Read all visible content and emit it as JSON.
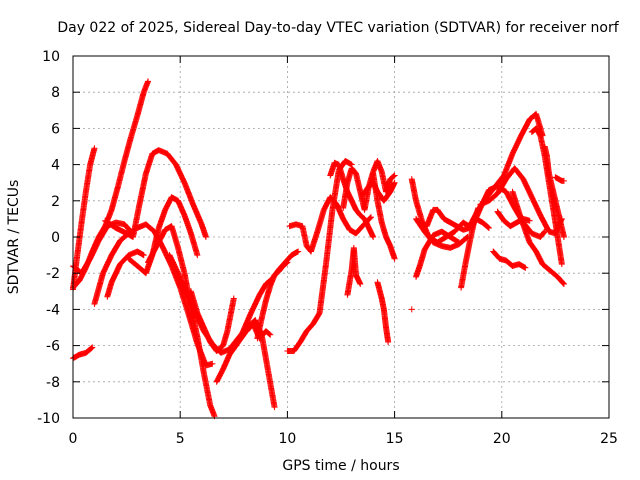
{
  "chart_data": {
    "type": "scatter",
    "title": "Day 022 of 2025, Sidereal Day-to-day VTEC variation (SDTVAR) for receiver norf",
    "xlabel": "GPS time / hours",
    "ylabel": "SDTVAR / TECUs",
    "xlim": [
      0,
      25
    ],
    "ylim": [
      -10,
      10
    ],
    "xticks": [
      0,
      5,
      10,
      15,
      20,
      25
    ],
    "yticks": [
      -10,
      -8,
      -6,
      -4,
      -2,
      0,
      2,
      4,
      6,
      8,
      10
    ],
    "grid": true,
    "marker": "+",
    "color": "#ff0000",
    "series": [
      {
        "x": [
          0.0,
          0.3,
          0.6,
          0.9
        ],
        "y": [
          -6.7,
          -6.5,
          -6.4,
          -6.1
        ]
      },
      {
        "x": [
          0.0,
          0.2,
          0.4,
          0.6,
          0.8,
          1.0
        ],
        "y": [
          -2.9,
          -1.0,
          0.8,
          2.5,
          4.0,
          4.9
        ]
      },
      {
        "x": [
          0.0,
          0.3,
          0.6,
          0.9,
          1.2,
          1.5,
          1.8,
          2.1,
          2.4,
          2.7,
          3.0,
          3.3,
          3.5
        ],
        "y": [
          -2.8,
          -2.4,
          -1.7,
          -0.8,
          0.0,
          0.6,
          1.5,
          2.8,
          4.2,
          5.5,
          6.7,
          8.0,
          8.6
        ]
      },
      {
        "x": [
          0.0,
          0.4,
          0.8,
          1.2,
          1.6,
          2.0,
          2.4,
          2.7
        ],
        "y": [
          -1.6,
          -2.0,
          -1.2,
          -0.2,
          0.6,
          0.8,
          0.7,
          0.3
        ]
      },
      {
        "x": [
          1.0,
          1.4,
          1.8,
          2.2,
          2.6,
          3.0,
          3.4,
          3.8,
          4.2,
          4.6,
          5.0,
          5.4,
          5.8,
          6.2,
          6.5
        ],
        "y": [
          -3.7,
          -2.0,
          -1.0,
          -0.2,
          0.2,
          0.5,
          0.7,
          0.3,
          -0.6,
          -1.6,
          -2.8,
          -4.3,
          -5.9,
          -7.1,
          -7.0
        ]
      },
      {
        "x": [
          1.5,
          2.0,
          2.5,
          2.8,
          3.1,
          3.4,
          3.7,
          4.0,
          4.4,
          4.8,
          5.2,
          5.6,
          6.0,
          6.2
        ],
        "y": [
          0.9,
          0.5,
          0.2,
          0.0,
          1.8,
          3.5,
          4.6,
          4.8,
          4.6,
          4.0,
          3.0,
          1.8,
          0.7,
          0.0
        ]
      },
      {
        "x": [
          1.6,
          1.8,
          2.0,
          2.2,
          2.6,
          3.0,
          3.3
        ],
        "y": [
          -3.3,
          -2.5,
          -2.0,
          -1.5,
          -1.0,
          -0.8,
          -1.0
        ]
      },
      {
        "x": [
          2.6,
          3.0,
          3.4,
          3.7,
          4.0,
          4.3,
          4.6,
          4.9,
          5.2,
          5.5,
          5.8
        ],
        "y": [
          -1.2,
          -1.6,
          -2.0,
          -1.0,
          0.5,
          1.5,
          2.2,
          2.0,
          1.2,
          0.2,
          -1.0
        ]
      },
      {
        "x": [
          3.5,
          3.9,
          4.3,
          4.6,
          4.9,
          5.2,
          5.5,
          5.8,
          6.1,
          6.4,
          6.6
        ],
        "y": [
          -1.4,
          -0.5,
          0.4,
          0.6,
          -0.6,
          -2.0,
          -3.9,
          -5.5,
          -7.5,
          -9.3,
          -9.9
        ]
      },
      {
        "x": [
          4.5,
          4.9,
          5.3,
          5.7,
          6.1,
          6.5,
          6.9,
          7.3,
          7.7,
          8.1,
          8.5
        ],
        "y": [
          -1.0,
          -2.0,
          -3.2,
          -4.2,
          -5.2,
          -5.9,
          -6.4,
          -6.2,
          -5.6,
          -5.0,
          -4.6
        ]
      },
      {
        "x": [
          5.5,
          5.8,
          6.1,
          6.4,
          6.7,
          7.0,
          7.2,
          7.5
        ],
        "y": [
          -3.0,
          -4.2,
          -5.0,
          -5.8,
          -6.3,
          -6.0,
          -5.2,
          -3.4
        ]
      },
      {
        "x": [
          6.7,
          7.0,
          7.3,
          7.6,
          7.9,
          8.2,
          8.5,
          8.8,
          9.1,
          9.4
        ],
        "y": [
          -8.0,
          -7.3,
          -6.5,
          -6.0,
          -5.5,
          -5.0,
          -4.6,
          -5.4,
          -7.4,
          -9.4
        ]
      },
      {
        "x": [
          7.9,
          8.3,
          8.7,
          9.0,
          9.3,
          9.6,
          9.9,
          10.2,
          10.5
        ],
        "y": [
          -5.3,
          -4.2,
          -3.2,
          -2.6,
          -2.3,
          -1.8,
          -1.4,
          -1.0,
          -0.8
        ]
      },
      {
        "x": [
          8.1,
          8.4,
          8.7,
          9.0,
          9.2
        ],
        "y": [
          -5.2,
          -4.8,
          -5.6,
          -5.2,
          -5.4
        ]
      },
      {
        "x": [
          8.6,
          8.8,
          9.0,
          9.2,
          9.4,
          9.6,
          9.8,
          10.0
        ],
        "y": [
          -5.6,
          -4.5,
          -3.5,
          -2.7,
          -2.1,
          -1.9,
          -1.6,
          -1.4
        ]
      },
      {
        "x": [
          10.0,
          10.3,
          10.6,
          10.9,
          11.2,
          11.5,
          11.8,
          12.1,
          12.4,
          12.7,
          13.0
        ],
        "y": [
          -6.3,
          -6.3,
          -5.8,
          -5.2,
          -4.8,
          -4.2,
          -1.5,
          1.5,
          3.7,
          4.2,
          4.0
        ]
      },
      {
        "x": [
          10.1,
          10.4,
          10.7,
          10.9,
          11.1,
          11.4,
          11.7,
          12.0,
          12.3,
          12.6,
          12.9,
          13.2,
          13.5,
          13.9
        ],
        "y": [
          0.6,
          0.7,
          0.6,
          -0.5,
          -0.8,
          0.3,
          1.5,
          2.2,
          1.8,
          1.0,
          0.4,
          0.2,
          0.6,
          1.1
        ]
      },
      {
        "x": [
          12.0,
          12.2,
          12.4,
          12.6,
          12.8,
          13.0,
          13.2,
          13.4,
          13.6,
          13.8,
          14.0
        ],
        "y": [
          3.4,
          4.1,
          4.0,
          3.2,
          2.5,
          2.0,
          1.5,
          1.2,
          1.0,
          0.5,
          0.0
        ]
      },
      {
        "x": [
          12.6,
          12.8,
          13.0,
          13.2,
          13.4,
          13.6,
          13.8,
          14.0,
          14.2,
          14.4,
          14.6,
          14.8,
          15.0
        ],
        "y": [
          1.6,
          3.0,
          3.8,
          3.5,
          2.5,
          1.5,
          2.8,
          3.6,
          4.2,
          3.6,
          2.5,
          3.2,
          3.4
        ]
      },
      {
        "x": [
          12.8,
          13.0,
          13.1,
          13.2,
          13.4
        ],
        "y": [
          -3.2,
          -1.8,
          -0.6,
          -2.1,
          -2.6
        ]
      },
      {
        "x": [
          13.5,
          13.8,
          14.0,
          14.2,
          14.5,
          14.8,
          15.0
        ],
        "y": [
          2.3,
          2.8,
          3.0,
          2.5,
          2.0,
          2.5,
          3.0
        ]
      },
      {
        "x": [
          14.0,
          14.2,
          14.4,
          14.6,
          14.8,
          15.0
        ],
        "y": [
          3.5,
          2.0,
          0.8,
          0.0,
          -0.5,
          -1.2
        ]
      },
      {
        "x": [
          14.2,
          14.4,
          14.5,
          14.6,
          14.7
        ],
        "y": [
          -2.5,
          -3.4,
          -4.0,
          -5.0,
          -5.8
        ]
      },
      {
        "x": [
          15.8
        ],
        "y": [
          -4.0
        ]
      },
      {
        "x": [
          15.8,
          16.0,
          16.3,
          16.6,
          17.0,
          17.4,
          17.8,
          18.2,
          18.6,
          19.0,
          19.4,
          19.8,
          20.2,
          20.6,
          21.0,
          21.4,
          21.8,
          22.0
        ],
        "y": [
          3.2,
          2.0,
          0.8,
          0.0,
          -0.3,
          0.0,
          0.3,
          0.8,
          0.5,
          1.6,
          2.6,
          2.8,
          2.5,
          1.6,
          0.8,
          0.2,
          0.0,
          0.3
        ]
      },
      {
        "x": [
          16.0,
          16.2,
          16.4,
          16.8,
          17.2,
          17.6,
          18.0
        ],
        "y": [
          -2.2,
          -1.5,
          -0.7,
          0.1,
          0.3,
          0.0,
          -0.3
        ]
      },
      {
        "x": [
          16.0,
          16.4,
          16.8,
          17.2,
          17.6,
          18.0,
          18.4
        ],
        "y": [
          1.0,
          0.3,
          -0.3,
          -0.5,
          -0.6,
          -0.4,
          0.0
        ]
      },
      {
        "x": [
          16.5,
          16.8,
          17.0,
          17.3,
          17.6,
          17.9,
          18.2,
          18.5,
          18.8,
          19.1,
          19.4
        ],
        "y": [
          0.6,
          1.5,
          1.5,
          1.0,
          0.8,
          0.6,
          0.4,
          0.5,
          1.0,
          0.8,
          0.5
        ]
      },
      {
        "x": [
          18.1,
          18.3,
          18.5,
          18.7,
          18.9
        ],
        "y": [
          -2.8,
          -1.5,
          -0.3,
          0.8,
          1.6
        ]
      },
      {
        "x": [
          18.5,
          18.9,
          19.3,
          19.7,
          20.1,
          20.5,
          20.9,
          21.3,
          21.6,
          21.9
        ],
        "y": [
          0.6,
          1.5,
          2.2,
          2.8,
          3.4,
          4.6,
          5.6,
          6.5,
          6.8,
          5.6
        ]
      },
      {
        "x": [
          19.0,
          19.4,
          19.8,
          20.2,
          20.6,
          21.0,
          21.4,
          21.8,
          22.2,
          22.5,
          22.8
        ],
        "y": [
          1.8,
          2.0,
          2.4,
          3.2,
          3.8,
          3.2,
          2.2,
          1.2,
          0.3,
          0.2,
          1.0
        ]
      },
      {
        "x": [
          19.6,
          19.9,
          20.2,
          20.5,
          20.8,
          21.1
        ],
        "y": [
          -0.8,
          -1.2,
          -1.3,
          -1.6,
          -1.5,
          -1.7
        ]
      },
      {
        "x": [
          19.8,
          20.1,
          20.4,
          20.7,
          21.0,
          21.3
        ],
        "y": [
          1.4,
          0.9,
          0.6,
          0.8,
          1.0,
          0.9
        ]
      },
      {
        "x": [
          20.5,
          20.9,
          21.3,
          21.6,
          21.9,
          22.2,
          22.6,
          22.9
        ],
        "y": [
          2.5,
          1.0,
          -0.3,
          -0.8,
          -1.5,
          -1.8,
          -2.2,
          -2.6
        ]
      },
      {
        "x": [
          21.4,
          21.6,
          21.8,
          22.0,
          22.2,
          22.5,
          22.8
        ],
        "y": [
          5.8,
          6.0,
          5.6,
          4.5,
          3.0,
          0.8,
          -1.5
        ]
      },
      {
        "x": [
          22.0,
          22.1,
          22.2,
          22.4,
          22.6,
          22.8,
          22.9
        ],
        "y": [
          5.0,
          4.5,
          3.5,
          2.5,
          1.5,
          0.5,
          0.0
        ]
      },
      {
        "x": [
          22.5,
          22.65,
          22.8,
          22.9
        ],
        "y": [
          3.3,
          3.2,
          3.1,
          3.1
        ]
      }
    ]
  }
}
